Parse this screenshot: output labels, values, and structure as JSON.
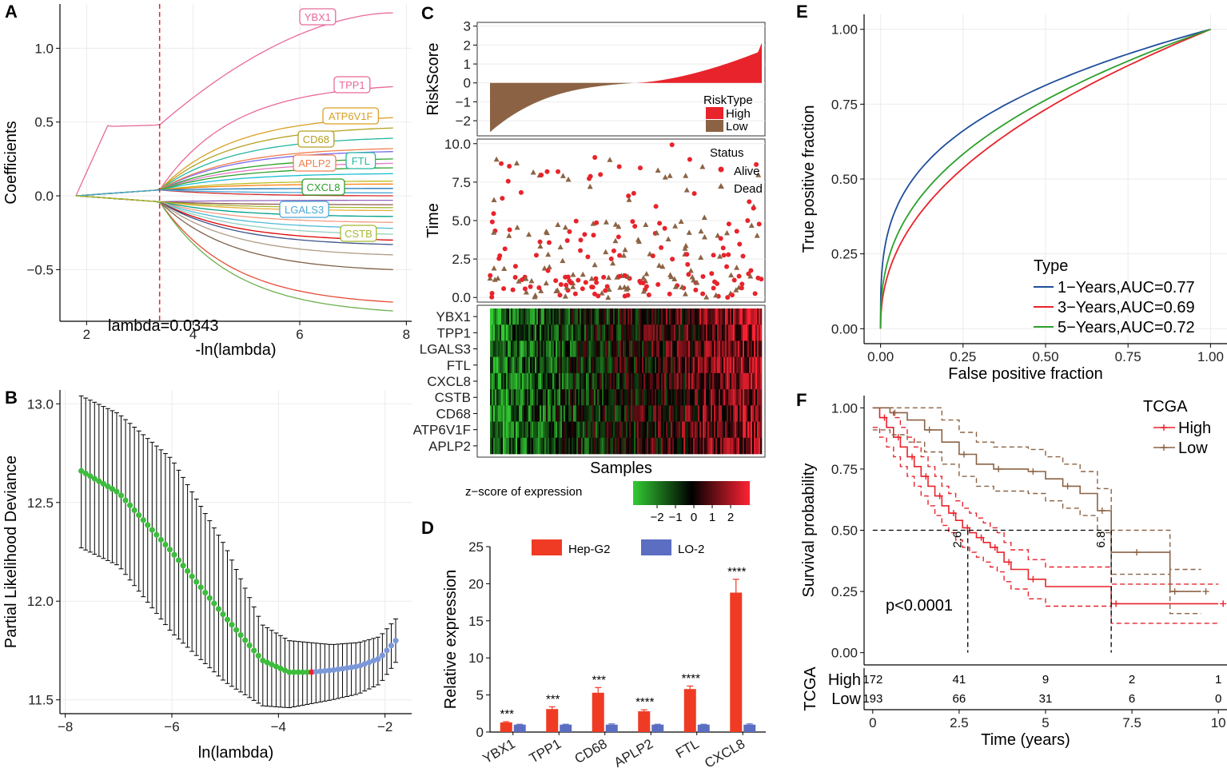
{
  "panels": {
    "a": "A",
    "b": "B",
    "c": "C",
    "d": "D",
    "e": "E",
    "f": "F"
  },
  "chart_data": [
    {
      "id": "A",
      "type": "line",
      "title": "",
      "xlabel": "-ln(lambda)",
      "ylabel": "Coefficients",
      "xlim": [
        1.5,
        8.1
      ],
      "ylim": [
        -0.85,
        1.3
      ],
      "xticks": [
        2,
        4,
        6,
        8
      ],
      "yticks": [
        -0.5,
        0.0,
        0.5,
        1.0
      ],
      "ytick_labels": [
        "−0.5",
        "0.0",
        "0.5",
        "1.0"
      ],
      "lambda_line": 3.37,
      "annotation": "lambda=0.0343",
      "labeled_genes": [
        {
          "name": "YBX1",
          "end": 1.24,
          "color": "#e8699b"
        },
        {
          "name": "TPP1",
          "end": 0.74,
          "color": "#e8699b"
        },
        {
          "name": "ATP6V1F",
          "end": 0.53,
          "color": "#d9a026"
        },
        {
          "name": "CD68",
          "end": 0.46,
          "color": "#b5a020"
        },
        {
          "name": "FTL",
          "end": 0.39,
          "color": "#23b8a1"
        },
        {
          "name": "APLP2",
          "end": 0.32,
          "color": "#f08050"
        },
        {
          "name": "CXCL8",
          "end": 0.19,
          "color": "#2ca02c"
        },
        {
          "name": "LGALS3",
          "end": 0.02,
          "color": "#4aa8d8"
        },
        {
          "name": "CSTB",
          "end": -0.08,
          "color": "#a8b830"
        }
      ],
      "other_path_ends": [
        0.3,
        0.25,
        0.22,
        0.15,
        0.1,
        0.08,
        0.05,
        0.0,
        -0.03,
        -0.06,
        -0.1,
        -0.14,
        -0.18,
        -0.22,
        -0.26,
        -0.3,
        -0.33,
        -0.4,
        -0.5,
        -0.72,
        -0.78
      ]
    },
    {
      "id": "B",
      "type": "scatter",
      "xlabel": "ln(lambda)",
      "ylabel": "Partial Likelihood Deviance",
      "xlim": [
        -8.1,
        -1.5
      ],
      "ylim": [
        11.43,
        13.07
      ],
      "xticks": [
        -8,
        -6,
        -4,
        -2
      ],
      "xtick_labels": [
        "−8",
        "−6",
        "−4",
        "−2"
      ],
      "yticks": [
        11.5,
        12.0,
        12.5,
        13.0
      ],
      "ytick_labels": [
        "11.5",
        "12.0",
        "12.5",
        "13.0"
      ],
      "curve_x": [
        -7.7,
        -7.0,
        -6.0,
        -5.0,
        -4.3,
        -3.8,
        -3.4,
        -3.0,
        -2.5,
        -2.1,
        -1.8
      ],
      "curve_y": [
        12.66,
        12.55,
        12.25,
        11.92,
        11.7,
        11.64,
        11.64,
        11.65,
        11.67,
        11.71,
        11.8
      ],
      "upper_y": [
        13.04,
        12.95,
        12.72,
        12.28,
        11.88,
        11.8,
        11.79,
        11.78,
        11.79,
        11.82,
        11.91
      ],
      "lower_y": [
        12.27,
        12.18,
        11.84,
        11.59,
        11.47,
        11.46,
        11.48,
        11.5,
        11.53,
        11.58,
        11.69
      ],
      "optimal_split_x": -3.37
    },
    {
      "id": "C1",
      "type": "area",
      "ylabel": "RiskScore",
      "ylim": [
        -2.8,
        3.2
      ],
      "yticks": [
        -2,
        -1,
        0,
        1,
        2,
        3
      ],
      "ytick_labels": [
        "−2",
        "−1",
        "0",
        "1",
        "2",
        "3"
      ],
      "legend_title": "RiskType",
      "legend": [
        {
          "label": "High",
          "color": "#e8232b"
        },
        {
          "label": "Low",
          "color": "#8b6344"
        }
      ],
      "n_samples": 365,
      "split_fraction": 0.53
    },
    {
      "id": "C2",
      "type": "scatter",
      "ylabel": "Time",
      "ylim": [
        -0.3,
        10.3
      ],
      "yticks": [
        0.0,
        2.5,
        5.0,
        7.5,
        10.0
      ],
      "ytick_labels": [
        "0.0",
        "2.5",
        "5.0",
        "7.5",
        "10.0"
      ],
      "legend_title": "Status",
      "legend": [
        {
          "label": "Alive",
          "color": "#e8232b",
          "shape": "circle"
        },
        {
          "label": "Dead",
          "color": "#8b6344",
          "shape": "triangle"
        }
      ]
    },
    {
      "id": "C3",
      "type": "heatmap",
      "xlabel": "Samples",
      "genes": [
        "YBX1",
        "TPP1",
        "LGALS3",
        "FTL",
        "CXCL8",
        "CSTB",
        "CD68",
        "ATP6V1F",
        "APLP2"
      ],
      "colorbar_title": "z−score of expression",
      "colorbar_ticks": [
        "−2",
        "−1",
        "0",
        "1",
        "2"
      ],
      "colors": [
        "#33cc33",
        "#000000",
        "#ff2233"
      ]
    },
    {
      "id": "D",
      "type": "bar",
      "ylabel": "Relative expression",
      "ylim": [
        0,
        25
      ],
      "yticks": [
        0,
        5,
        10,
        15,
        20,
        25
      ],
      "ytick_labels": [
        "0",
        "5",
        "10",
        "15",
        "20",
        "25"
      ],
      "categories": [
        "YBX1",
        "TPP1",
        "CD68",
        "APLP2",
        "FTL",
        "CXCL8"
      ],
      "series": [
        {
          "name": "Hep-G2",
          "color": "#ef3b24",
          "values": [
            1.3,
            3.1,
            5.3,
            2.8,
            5.8,
            18.8
          ],
          "errors": [
            0.1,
            0.3,
            0.7,
            0.2,
            0.4,
            1.8
          ]
        },
        {
          "name": "LO-2",
          "color": "#5b6ec2",
          "values": [
            1.0,
            1.0,
            1.0,
            1.0,
            1.0,
            1.0
          ],
          "errors": [
            0.05,
            0.05,
            0.1,
            0.05,
            0.05,
            0.1
          ]
        }
      ],
      "significance": [
        "***",
        "***",
        "***",
        "****",
        "****",
        "****"
      ]
    },
    {
      "id": "E",
      "type": "line",
      "xlabel": "False positive fraction",
      "ylabel": "True positive fraction",
      "xlim": [
        -0.05,
        1.05
      ],
      "ylim": [
        -0.05,
        1.05
      ],
      "xticks": [
        0.0,
        0.25,
        0.5,
        0.75,
        1.0
      ],
      "xtick_labels": [
        "0.00",
        "0.25",
        "0.50",
        "0.75",
        "1.00"
      ],
      "yticks": [
        0.0,
        0.25,
        0.5,
        0.75,
        1.0
      ],
      "ytick_labels": [
        "0.00",
        "0.25",
        "0.50",
        "0.75",
        "1.00"
      ],
      "legend_title": "Type",
      "series": [
        {
          "name": "1−Years,AUC=0.77",
          "color": "#1f4e9a",
          "auc": 0.77
        },
        {
          "name": "3−Years,AUC=0.69",
          "color": "#e8232b",
          "auc": 0.69
        },
        {
          "name": "5−Years,AUC=0.72",
          "color": "#2ca02c",
          "auc": 0.72
        }
      ]
    },
    {
      "id": "F",
      "type": "line",
      "xlabel": "Time (years)",
      "ylabel": "Survival probability",
      "xlim": [
        -0.25,
        10.25
      ],
      "ylim": [
        -0.05,
        1.05
      ],
      "xticks": [
        0,
        2.5,
        5,
        7.5,
        10
      ],
      "xtick_labels": [
        "0",
        "2.5",
        "5",
        "7.5",
        "10"
      ],
      "yticks": [
        0,
        0.25,
        0.5,
        0.75,
        1.0
      ],
      "ytick_labels": [
        "0.00",
        "0.25",
        "0.50",
        "0.75",
        "1.00"
      ],
      "legend_title": "TCGA",
      "pvalue": "p<0.0001",
      "median_labels": [
        "2.6",
        "6.8"
      ],
      "series": [
        {
          "name": "High",
          "color": "#e8232b",
          "t": [
            0,
            0.2,
            0.4,
            0.6,
            0.8,
            1.0,
            1.2,
            1.4,
            1.6,
            1.8,
            2.0,
            2.2,
            2.4,
            2.6,
            2.8,
            3.0,
            3.2,
            3.4,
            3.6,
            3.8,
            4.0,
            4.5,
            5.0,
            6.9,
            8.6,
            10.0
          ],
          "s": [
            1.0,
            0.96,
            0.92,
            0.88,
            0.84,
            0.8,
            0.76,
            0.72,
            0.68,
            0.64,
            0.6,
            0.57,
            0.54,
            0.51,
            0.49,
            0.47,
            0.45,
            0.43,
            0.41,
            0.37,
            0.34,
            0.3,
            0.27,
            0.2,
            0.2,
            0.2
          ]
        },
        {
          "name": "Low",
          "color": "#8b6344",
          "t": [
            0,
            0.5,
            1.0,
            1.5,
            2.0,
            2.5,
            3.0,
            3.5,
            4.0,
            4.5,
            5.0,
            5.5,
            6.0,
            6.5,
            6.9,
            7.5,
            8.0,
            8.6,
            9.0,
            9.5
          ],
          "s": [
            1.0,
            0.98,
            0.95,
            0.91,
            0.86,
            0.81,
            0.77,
            0.75,
            0.75,
            0.74,
            0.71,
            0.68,
            0.65,
            0.58,
            0.41,
            0.41,
            0.41,
            0.25,
            0.25,
            0.25
          ]
        }
      ],
      "risk_table": {
        "label": "TCGA",
        "rows": [
          {
            "name": "High",
            "color": "#e8232b",
            "counts": [
              "172",
              "41",
              "9",
              "2",
              "1"
            ]
          },
          {
            "name": "Low",
            "color": "#8b6344",
            "counts": [
              "193",
              "66",
              "31",
              "6",
              "0"
            ]
          }
        ]
      }
    }
  ]
}
